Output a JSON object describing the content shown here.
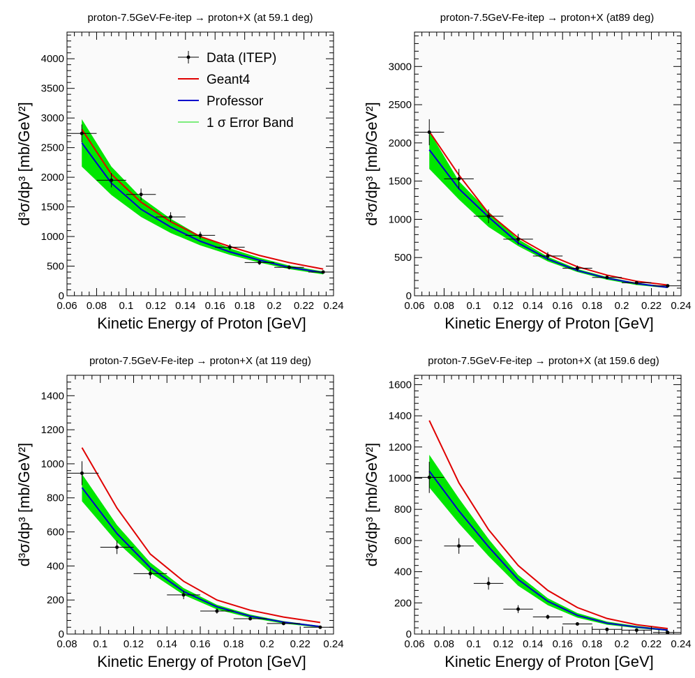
{
  "chart_data": [
    {
      "type": "line",
      "title": "proton-7.5GeV-Fe-itep → proton+X (at 59.1 deg)",
      "xlabel": "Kinetic Energy of Proton [GeV]",
      "ylabel": "d³σ/dp³ [mb/GeV²]",
      "xlim": [
        0.06,
        0.24
      ],
      "ylim": [
        0,
        4450
      ],
      "xticks": [
        0.06,
        0.08,
        0.1,
        0.12,
        0.14,
        0.16,
        0.18,
        0.2,
        0.22,
        0.24
      ],
      "xtick_labels": [
        "0.06",
        "0.08",
        "0.1",
        "0.12",
        "0.14",
        "0.16",
        "0.18",
        "0.2",
        "0.22",
        "0.24"
      ],
      "yticks": [
        0,
        500,
        1000,
        1500,
        2000,
        2500,
        3000,
        3500,
        4000
      ],
      "ytick_labels": [
        "0",
        "500",
        "1000",
        "1500",
        "2000",
        "2500",
        "3000",
        "3500",
        "4000"
      ],
      "legend": {
        "position": "top-right",
        "entries": [
          {
            "label": "Data (ITEP)",
            "color": "#000000",
            "style": "marker"
          },
          {
            "label": "Geant4",
            "color": "#e00000",
            "style": "line"
          },
          {
            "label": "Professor",
            "color": "#0000cc",
            "style": "line"
          },
          {
            "label": "1 σ Error Band",
            "color": "#00e000",
            "style": "band"
          }
        ]
      },
      "data": {
        "x": [
          0.07,
          0.09,
          0.11,
          0.13,
          0.15,
          0.17,
          0.19,
          0.21,
          0.233
        ],
        "xerr": [
          0.01,
          0.01,
          0.01,
          0.01,
          0.01,
          0.01,
          0.01,
          0.01,
          0.01
        ],
        "y": [
          2740,
          1950,
          1710,
          1330,
          1020,
          820,
          560,
          480,
          400
        ],
        "yerr": [
          150,
          120,
          100,
          80,
          60,
          50,
          40,
          35,
          30
        ]
      },
      "geant4": {
        "x": [
          0.07,
          0.09,
          0.11,
          0.13,
          0.15,
          0.17,
          0.19,
          0.21,
          0.233
        ],
        "y": [
          2810,
          2050,
          1580,
          1250,
          1000,
          830,
          680,
          560,
          450
        ]
      },
      "professor": {
        "x": [
          0.07,
          0.09,
          0.11,
          0.13,
          0.15,
          0.17,
          0.19,
          0.21,
          0.233
        ],
        "y": [
          2580,
          1900,
          1460,
          1160,
          920,
          740,
          600,
          480,
          390
        ]
      },
      "band": {
        "x": [
          0.07,
          0.09,
          0.11,
          0.13,
          0.15,
          0.17,
          0.19,
          0.21,
          0.233
        ],
        "low": [
          2180,
          1700,
          1330,
          1060,
          850,
          690,
          560,
          450,
          360
        ],
        "high": [
          2980,
          2180,
          1660,
          1300,
          1010,
          800,
          640,
          510,
          410
        ]
      }
    },
    {
      "type": "line",
      "title": "proton-7.5GeV-Fe-itep → proton+X (at89 deg)",
      "xlabel": "Kinetic Energy of Proton [GeV]",
      "ylabel": "d³σ/dp³ [mb/GeV²]",
      "xlim": [
        0.06,
        0.24
      ],
      "ylim": [
        0,
        3450
      ],
      "xticks": [
        0.06,
        0.08,
        0.1,
        0.12,
        0.14,
        0.16,
        0.18,
        0.2,
        0.22,
        0.24
      ],
      "xtick_labels": [
        "0.06",
        "0.08",
        "0.1",
        "0.12",
        "0.14",
        "0.16",
        "0.18",
        "0.2",
        "0.22",
        "0.24"
      ],
      "yticks": [
        0,
        500,
        1000,
        1500,
        2000,
        2500,
        3000
      ],
      "ytick_labels": [
        "0",
        "500",
        "1000",
        "1500",
        "2000",
        "2500",
        "3000"
      ],
      "data": {
        "x": [
          0.07,
          0.09,
          0.11,
          0.13,
          0.15,
          0.17,
          0.19,
          0.21,
          0.231
        ],
        "xerr": [
          0.01,
          0.01,
          0.01,
          0.01,
          0.01,
          0.01,
          0.01,
          0.01,
          0.01
        ],
        "y": [
          2140,
          1530,
          1040,
          740,
          520,
          360,
          240,
          170,
          130
        ],
        "yerr": [
          170,
          130,
          90,
          70,
          50,
          35,
          25,
          20,
          15
        ]
      },
      "geant4": {
        "x": [
          0.07,
          0.09,
          0.11,
          0.13,
          0.15,
          0.17,
          0.19,
          0.21,
          0.231
        ],
        "y": [
          2150,
          1580,
          1080,
          760,
          540,
          380,
          270,
          190,
          140
        ]
      },
      "professor": {
        "x": [
          0.07,
          0.09,
          0.11,
          0.13,
          0.15,
          0.17,
          0.19,
          0.21,
          0.231
        ],
        "y": [
          1910,
          1400,
          1030,
          690,
          480,
          330,
          230,
          160,
          110
        ]
      },
      "band": {
        "x": [
          0.07,
          0.09,
          0.11,
          0.13,
          0.15,
          0.17,
          0.19,
          0.21,
          0.231
        ],
        "low": [
          1660,
          1260,
          900,
          650,
          450,
          310,
          210,
          140,
          100
        ],
        "high": [
          2150,
          1500,
          1100,
          740,
          510,
          350,
          245,
          170,
          120
        ]
      }
    },
    {
      "type": "line",
      "title": "proton-7.5GeV-Fe-itep → proton+X (at 119 deg)",
      "xlabel": "Kinetic Energy of Proton [GeV]",
      "ylabel": "d³σ/dp³ [mb/GeV²]",
      "xlim": [
        0.08,
        0.24
      ],
      "ylim": [
        0,
        1520
      ],
      "xticks": [
        0.08,
        0.1,
        0.12,
        0.14,
        0.16,
        0.18,
        0.2,
        0.22,
        0.24
      ],
      "xtick_labels": [
        "0.08",
        "0.1",
        "0.12",
        "0.14",
        "0.16",
        "0.18",
        "0.2",
        "0.22",
        "0.24"
      ],
      "yticks": [
        0,
        200,
        400,
        600,
        800,
        1000,
        1200,
        1400
      ],
      "ytick_labels": [
        "0",
        "200",
        "400",
        "600",
        "800",
        "1000",
        "1200",
        "1400"
      ],
      "data": {
        "x": [
          0.089,
          0.11,
          0.13,
          0.15,
          0.17,
          0.19,
          0.21,
          0.232
        ],
        "xerr": [
          0.01,
          0.01,
          0.01,
          0.01,
          0.01,
          0.01,
          0.01,
          0.01
        ],
        "y": [
          945,
          510,
          355,
          230,
          135,
          90,
          62,
          40
        ],
        "yerr": [
          70,
          40,
          30,
          25,
          15,
          10,
          8,
          5
        ]
      },
      "geant4": {
        "x": [
          0.089,
          0.11,
          0.13,
          0.15,
          0.17,
          0.19,
          0.21,
          0.232
        ],
        "y": [
          1095,
          740,
          470,
          310,
          200,
          140,
          100,
          68
        ]
      },
      "professor": {
        "x": [
          0.089,
          0.11,
          0.13,
          0.15,
          0.17,
          0.19,
          0.21,
          0.232
        ],
        "y": [
          860,
          590,
          390,
          250,
          160,
          105,
          70,
          44
        ]
      },
      "band": {
        "x": [
          0.089,
          0.11,
          0.13,
          0.15,
          0.17,
          0.19,
          0.21,
          0.232
        ],
        "low": [
          780,
          540,
          360,
          230,
          145,
          95,
          62,
          38
        ],
        "high": [
          940,
          640,
          420,
          270,
          172,
          114,
          76,
          48
        ]
      }
    },
    {
      "type": "line",
      "title": "proton-7.5GeV-Fe-itep    → proton+X (at 159.6 deg)",
      "xlabel": "Kinetic Energy of Proton [GeV]",
      "ylabel": "d³σ/dp³ [mb/GeV²]",
      "xlim": [
        0.06,
        0.24
      ],
      "ylim": [
        0,
        1660
      ],
      "xticks": [
        0.06,
        0.08,
        0.1,
        0.12,
        0.14,
        0.16,
        0.18,
        0.2,
        0.22,
        0.24
      ],
      "xtick_labels": [
        "0.06",
        "0.08",
        "0.1",
        "0.12",
        "0.14",
        "0.16",
        "0.18",
        "0.2",
        "0.22",
        "0.24"
      ],
      "yticks": [
        0,
        200,
        400,
        600,
        800,
        1000,
        1200,
        1400,
        1600
      ],
      "ytick_labels": [
        "0",
        "200",
        "400",
        "600",
        "800",
        "1000",
        "1200",
        "1400",
        "1600"
      ],
      "data": {
        "x": [
          0.07,
          0.09,
          0.11,
          0.13,
          0.15,
          0.17,
          0.19,
          0.21,
          0.231
        ],
        "xerr": [
          0.01,
          0.01,
          0.01,
          0.01,
          0.01,
          0.01,
          0.01,
          0.01,
          0.01
        ],
        "y": [
          1005,
          565,
          325,
          160,
          110,
          65,
          30,
          25,
          10
        ],
        "yerr": [
          100,
          50,
          40,
          25,
          15,
          10,
          5,
          5,
          3
        ]
      },
      "geant4": {
        "x": [
          0.07,
          0.09,
          0.11,
          0.13,
          0.15,
          0.17,
          0.19,
          0.21,
          0.231
        ],
        "y": [
          1370,
          970,
          670,
          440,
          280,
          170,
          100,
          60,
          35
        ]
      },
      "professor": {
        "x": [
          0.07,
          0.09,
          0.11,
          0.13,
          0.15,
          0.17,
          0.19,
          0.21,
          0.231
        ],
        "y": [
          1045,
          790,
          560,
          350,
          210,
          120,
          70,
          45,
          25
        ]
      },
      "band": {
        "x": [
          0.07,
          0.09,
          0.11,
          0.13,
          0.15,
          0.17,
          0.19,
          0.21,
          0.231
        ],
        "low": [
          940,
          710,
          500,
          310,
          185,
          105,
          60,
          38,
          20
        ],
        "high": [
          1150,
          870,
          610,
          380,
          230,
          135,
          80,
          52,
          30
        ]
      }
    }
  ]
}
